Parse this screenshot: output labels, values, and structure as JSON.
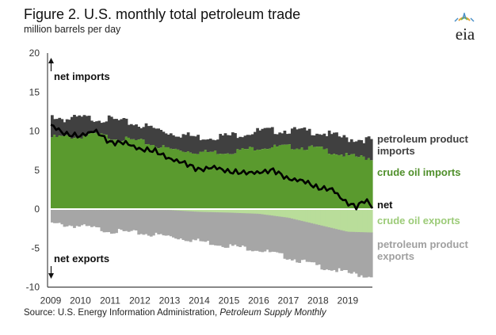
{
  "header": {
    "title": "Figure 2. U.S. monthly total petroleum trade",
    "units": "million barrels per day",
    "logo_text": "eia"
  },
  "source": {
    "prefix": "Source: U.S. Energy Information Administration, ",
    "publication": "Petroleum Supply Monthly"
  },
  "colors": {
    "product_imports": "#404040",
    "crude_imports": "#5a9a2e",
    "crude_exports": "#b9dd9a",
    "product_exports": "#a6a6a6",
    "net": "#000000"
  },
  "chart_data": {
    "type": "area",
    "title": "Figure 2. U.S. monthly total petroleum trade",
    "ylabel": "million barrels per day",
    "ylim": [
      -10,
      20
    ],
    "yticks": [
      20,
      15,
      10,
      5,
      0,
      -5,
      -10
    ],
    "xlim": [
      2009,
      2019.83
    ],
    "xticks": [
      "2009",
      "2010",
      "2011",
      "2012",
      "2013",
      "2014",
      "2015",
      "2016",
      "2017",
      "2018",
      "2019"
    ],
    "annotations": {
      "net_imports": "net imports",
      "net_exports": "net exports"
    },
    "series_labels": {
      "product_imports": [
        "petroleum product",
        "imports"
      ],
      "crude_imports": "crude oil imports",
      "net": "net",
      "crude_exports": "crude oil exports",
      "product_exports": [
        "petroleum product",
        "exports"
      ]
    },
    "series_keypoints": {
      "crude_imports": [
        [
          2009,
          9.2
        ],
        [
          2010,
          9.3
        ],
        [
          2010.5,
          9.6
        ],
        [
          2011,
          9.2
        ],
        [
          2012,
          8.7
        ],
        [
          2013,
          7.7
        ],
        [
          2014,
          7.3
        ],
        [
          2015,
          7.3
        ],
        [
          2016,
          7.9
        ],
        [
          2017,
          8.0
        ],
        [
          2018,
          7.8
        ],
        [
          2019,
          6.8
        ],
        [
          2019.83,
          6.5
        ]
      ],
      "total_imports": [
        [
          2009,
          12.0
        ],
        [
          2009.5,
          11.5
        ],
        [
          2010,
          11.7
        ],
        [
          2011,
          11.5
        ],
        [
          2012,
          10.8
        ],
        [
          2013,
          9.8
        ],
        [
          2014,
          9.2
        ],
        [
          2015,
          9.4
        ],
        [
          2016,
          10.0
        ],
        [
          2017,
          10.1
        ],
        [
          2018,
          9.9
        ],
        [
          2019,
          9.0
        ],
        [
          2019.83,
          8.9
        ]
      ],
      "crude_exports": [
        [
          2009,
          -0.05
        ],
        [
          2013,
          -0.12
        ],
        [
          2014,
          -0.35
        ],
        [
          2015,
          -0.45
        ],
        [
          2016,
          -0.6
        ],
        [
          2017,
          -1.1
        ],
        [
          2018,
          -2.0
        ],
        [
          2019,
          -2.9
        ],
        [
          2019.83,
          -3.0
        ]
      ],
      "total_exports": [
        [
          2009,
          -1.9
        ],
        [
          2010,
          -2.2
        ],
        [
          2011,
          -2.8
        ],
        [
          2012,
          -3.1
        ],
        [
          2013,
          -3.5
        ],
        [
          2014,
          -4.1
        ],
        [
          2015,
          -4.7
        ],
        [
          2016,
          -5.2
        ],
        [
          2017,
          -6.2
        ],
        [
          2018,
          -7.3
        ],
        [
          2019,
          -8.2
        ],
        [
          2019.83,
          -8.7
        ]
      ],
      "net": [
        [
          2009,
          10.8
        ],
        [
          2009.5,
          9.5
        ],
        [
          2010,
          9.3
        ],
        [
          2010.5,
          10.1
        ],
        [
          2011,
          8.6
        ],
        [
          2011.5,
          8.6
        ],
        [
          2012,
          7.6
        ],
        [
          2012.5,
          7.4
        ],
        [
          2013,
          6.4
        ],
        [
          2013.5,
          6.0
        ],
        [
          2014,
          5.1
        ],
        [
          2014.5,
          5.4
        ],
        [
          2015,
          4.7
        ],
        [
          2015.5,
          4.6
        ],
        [
          2016,
          4.7
        ],
        [
          2016.5,
          5.1
        ],
        [
          2017,
          3.9
        ],
        [
          2017.5,
          3.6
        ],
        [
          2018,
          2.6
        ],
        [
          2018.5,
          2.5
        ],
        [
          2018.75,
          1.5
        ],
        [
          2019,
          0.8
        ],
        [
          2019.3,
          0.4
        ],
        [
          2019.6,
          1.3
        ],
        [
          2019.83,
          0.3
        ]
      ]
    }
  }
}
